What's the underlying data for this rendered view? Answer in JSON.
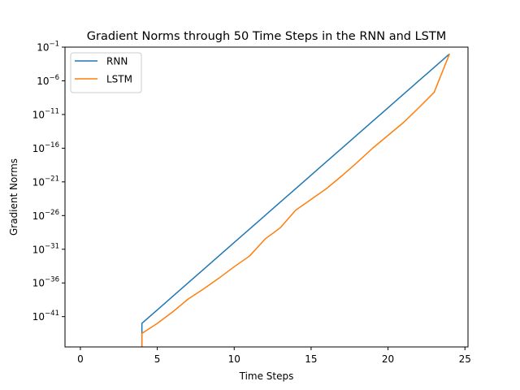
{
  "chart_data": {
    "type": "line",
    "title": "Gradient Norms through 50 Time Steps in the RNN and LSTM",
    "xlabel": "Time Steps",
    "ylabel": "Gradient Norms",
    "xlim": [
      -1.0,
      25.2
    ],
    "ylim_log10": [
      -45.5,
      -1
    ],
    "yscale": "log",
    "x_ticks": [
      0,
      5,
      10,
      15,
      20,
      25
    ],
    "y_ticks": [
      {
        "base": "10",
        "exp": "−1",
        "log10": -1
      },
      {
        "base": "10",
        "exp": "−6",
        "log10": -6
      },
      {
        "base": "10",
        "exp": "−11",
        "log10": -11
      },
      {
        "base": "10",
        "exp": "−16",
        "log10": -16
      },
      {
        "base": "10",
        "exp": "−21",
        "log10": -21
      },
      {
        "base": "10",
        "exp": "−26",
        "log10": -26
      },
      {
        "base": "10",
        "exp": "−31",
        "log10": -31
      },
      {
        "base": "10",
        "exp": "−36",
        "log10": -36
      },
      {
        "base": "10",
        "exp": "−41",
        "log10": -41
      }
    ],
    "grid": false,
    "legend_position": "top-left",
    "series": [
      {
        "name": "RNN",
        "color": "#1f77b4",
        "x": [
          4,
          4,
          5,
          6,
          7,
          8,
          9,
          10,
          11,
          12,
          13,
          14,
          15,
          16,
          17,
          18,
          19,
          20,
          21,
          22,
          23,
          24
        ],
        "y_log10": [
          -46,
          -42,
          -40,
          -38,
          -36,
          -34,
          -32,
          -30,
          -28,
          -26,
          -24,
          -22,
          -20,
          -18,
          -16,
          -14,
          -12,
          -10,
          -8,
          -6,
          -4,
          -2
        ]
      },
      {
        "name": "LSTM",
        "color": "#ff7f0e",
        "x": [
          4,
          4,
          5,
          6,
          7,
          8,
          9,
          10,
          11,
          12,
          13,
          14,
          15,
          16,
          17,
          18,
          19,
          20,
          21,
          22,
          23,
          24
        ],
        "y_log10": [
          -46,
          -43.5,
          -42,
          -40.3,
          -38.4,
          -36.9,
          -35.3,
          -33.6,
          -32,
          -29.5,
          -27.8,
          -25.2,
          -23.6,
          -22,
          -20.1,
          -18.1,
          -16,
          -14.1,
          -12.2,
          -10,
          -7.7,
          -2
        ]
      }
    ]
  }
}
